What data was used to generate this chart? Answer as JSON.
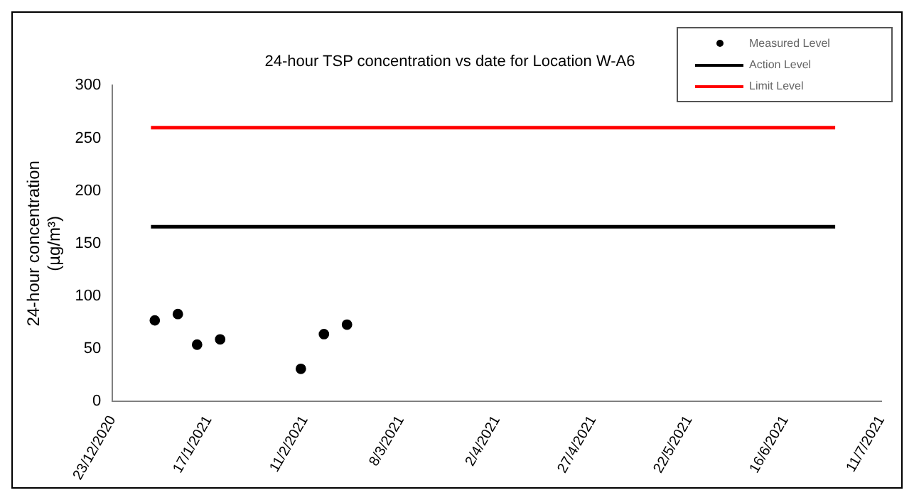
{
  "chart_data": {
    "type": "scatter",
    "title": "24-hour TSP concentration vs date for Location W-A6",
    "ylabel": "24-hour concentration\n(µg/m³)",
    "series": [
      {
        "name": "Measured Level",
        "marker": "circle",
        "color": "#000000",
        "x": [
          "2021-01-03",
          "2021-01-09",
          "2021-01-14",
          "2021-01-20",
          "2021-02-10",
          "2021-02-16",
          "2021-02-22"
        ],
        "values": [
          77,
          83,
          54,
          59,
          31,
          64,
          73
        ]
      },
      {
        "name": "Action Level",
        "type": "line",
        "marker": "none",
        "color": "#000000",
        "x": [
          "2021-01-02",
          "2021-06-29"
        ],
        "values": [
          166,
          166
        ]
      },
      {
        "name": "Limit Level",
        "type": "line",
        "marker": "none",
        "color": "#ff0000",
        "x": [
          "2021-01-02",
          "2021-06-29"
        ],
        "values": [
          260,
          260
        ]
      }
    ],
    "xlim": [
      "2020-12-23",
      "2021-07-11"
    ],
    "xticks": [
      {
        "value": "2020-12-23",
        "label": "23/12/2020"
      },
      {
        "value": "2021-01-17",
        "label": "17/1/2021"
      },
      {
        "value": "2021-02-11",
        "label": "11/2/2021"
      },
      {
        "value": "2021-03-08",
        "label": "8/3/2021"
      },
      {
        "value": "2021-04-02",
        "label": "2/4/2021"
      },
      {
        "value": "2021-04-27",
        "label": "27/4/2021"
      },
      {
        "value": "2021-05-22",
        "label": "22/5/2021"
      },
      {
        "value": "2021-06-16",
        "label": "16/6/2021"
      },
      {
        "value": "2021-07-11",
        "label": "11/7/2021"
      }
    ],
    "ylim": [
      0,
      300
    ],
    "yticks": [
      0,
      50,
      100,
      150,
      200,
      250,
      300
    ],
    "grid": false,
    "legend": "top right",
    "line_style": "solid"
  }
}
